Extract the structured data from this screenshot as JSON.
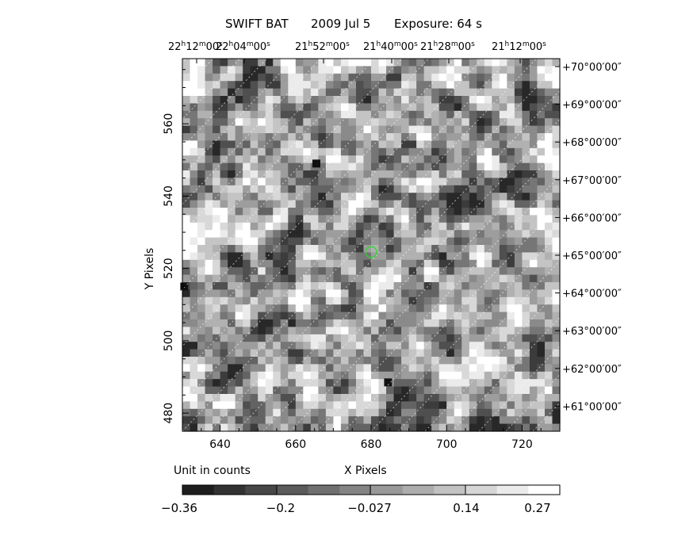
{
  "chart_data": {
    "type": "heatmap",
    "title_parts": [
      "SWIFT BAT",
      "2009 Jul  5",
      "Exposure: 64 s"
    ],
    "xlabel": "X Pixels",
    "ylabel": "Y Pixels",
    "xlim": [
      630,
      730
    ],
    "ylim": [
      475,
      578
    ],
    "x_ticks": [
      640,
      660,
      680,
      700,
      720
    ],
    "y_ticks": [
      480,
      500,
      520,
      540,
      560
    ],
    "ra_ticks": [
      {
        "h": "22",
        "m": "12",
        "s": "00"
      },
      {
        "h": "22",
        "m": "04",
        "s": "00"
      },
      {
        "h": "21",
        "m": "52",
        "s": "00"
      },
      {
        "h": "21",
        "m": "40",
        "s": "00"
      },
      {
        "h": "21",
        "m": "28",
        "s": "00"
      },
      {
        "h": "21",
        "m": "12",
        "s": "00"
      }
    ],
    "dec_ticks": [
      "+70°00′00″",
      "+69°00′00″",
      "+68°00′00″",
      "+67°00′00″",
      "+66°00′00″",
      "+65°00′00″",
      "+64°00′00″",
      "+63°00′00″",
      "+62°00′00″",
      "+61°00′00″"
    ],
    "source_marker": {
      "x": 680,
      "y": 524.5,
      "color": "#22dd22"
    },
    "colorbar": {
      "unit_label": "Unit in counts",
      "range": [
        -0.36,
        0.27
      ],
      "tick_labels": [
        "−0.36",
        "−0.2",
        "−0.027",
        "0.14",
        "0.27"
      ],
      "levels": 12
    },
    "image_stats": {
      "min": -0.36,
      "max": 0.27,
      "grid_cols": 50,
      "grid_rows": 50
    },
    "grid": "dashed coordinate grid"
  }
}
